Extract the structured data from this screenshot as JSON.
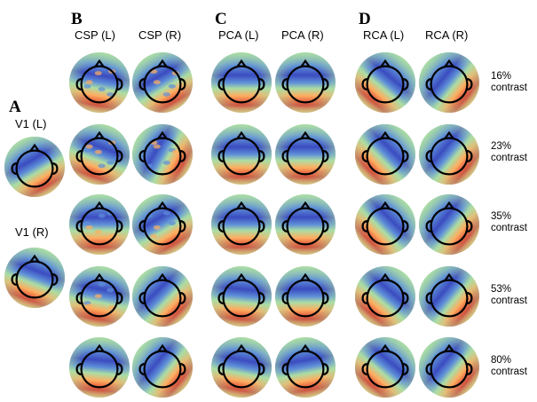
{
  "panels": {
    "A": {
      "letter": "A",
      "labels": [
        "V1 (L)",
        "V1 (R)"
      ]
    },
    "B": {
      "letter": "B",
      "columns": [
        "CSP (L)",
        "CSP (R)"
      ]
    },
    "C": {
      "letter": "C",
      "columns": [
        "PCA (L)",
        "PCA (R)"
      ]
    },
    "D": {
      "letter": "D",
      "columns": [
        "RCA (L)",
        "RCA (R)"
      ]
    }
  },
  "rows": [
    {
      "percent": "16%",
      "word": "contrast"
    },
    {
      "percent": "23%",
      "word": "contrast"
    },
    {
      "percent": "35%",
      "word": "contrast"
    },
    {
      "percent": "53%",
      "word": "contrast"
    },
    {
      "percent": "80%",
      "word": "contrast"
    }
  ],
  "colors": {
    "hot": "#d73027",
    "warm": "#fdae61",
    "neutral": "#abdda4",
    "cool": "#5e8fd8",
    "cold": "#3b4cc0",
    "outline": "#000000"
  }
}
